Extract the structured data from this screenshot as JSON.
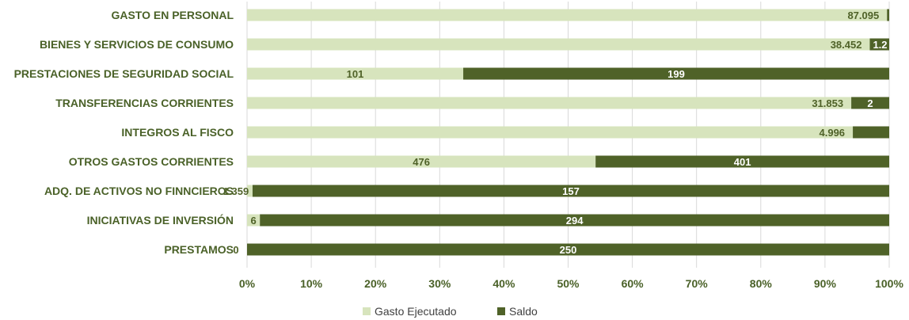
{
  "chart_data": {
    "type": "bar",
    "orientation": "horizontal",
    "stacked": "percent",
    "categories": [
      "GASTO EN PERSONAL",
      "BIENES Y SERVICIOS DE CONSUMO",
      "PRESTACIONES DE SEGURIDAD SOCIAL",
      "TRANSFERENCIAS CORRIENTES",
      "INTEGROS AL FISCO",
      "OTROS GASTOS CORRIENTES",
      "ADQ. DE ACTIVOS NO FINNCIEROS",
      "INICIATIVAS DE INVERSIÓN",
      "PRESTAMOS"
    ],
    "series": [
      {
        "name": "Gasto Ejecutado",
        "color": "#d7e4bd",
        "label_color": "#4f6228",
        "values": [
          87.095,
          38.452,
          101,
          31.853,
          4.996,
          476,
          1.359,
          6,
          0
        ],
        "labels": [
          "87.095",
          "38.452",
          "101",
          "31.853",
          "4.996",
          "476",
          "1.359",
          "6",
          "0"
        ]
      },
      {
        "name": "Saldo",
        "color": "#4f6228",
        "label_color": "#ffffff",
        "values": [
          0.3,
          1.2,
          199,
          2,
          0.3,
          401,
          157,
          294,
          250
        ],
        "labels": [
          "",
          "1.2",
          "199",
          "2",
          "",
          "401",
          "157",
          "294",
          "250"
        ]
      }
    ],
    "xlim": [
      0,
      100
    ],
    "xticks": [
      "0%",
      "10%",
      "20%",
      "30%",
      "40%",
      "50%",
      "60%",
      "70%",
      "80%",
      "90%",
      "100%"
    ],
    "legend_position": "bottom",
    "grid": true
  }
}
